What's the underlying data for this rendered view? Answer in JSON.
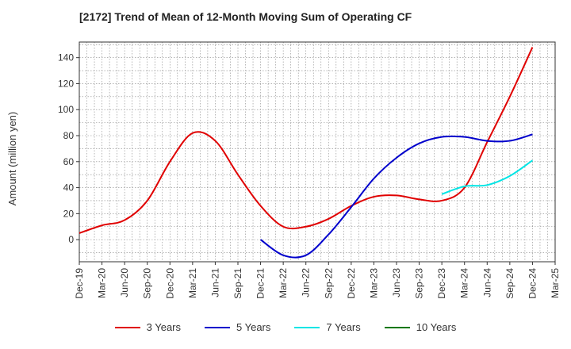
{
  "chart_data": {
    "type": "line",
    "title": "[2172]  Trend of Mean of 12-Month Moving Sum of Operating CF",
    "xlabel": "",
    "ylabel": "Amount (million yen)",
    "ylim": [
      -17,
      152
    ],
    "yticks": [
      0,
      20,
      40,
      60,
      80,
      100,
      120,
      140
    ],
    "categories": [
      "Dec-19",
      "Mar-20",
      "Jun-20",
      "Sep-20",
      "Dec-20",
      "Mar-21",
      "Jun-21",
      "Sep-21",
      "Dec-21",
      "Mar-22",
      "Jun-22",
      "Sep-22",
      "Dec-22",
      "Mar-23",
      "Jun-23",
      "Sep-23",
      "Dec-23",
      "Mar-24",
      "Jun-24",
      "Sep-24",
      "Dec-24",
      "Mar-25"
    ],
    "grid": true,
    "legend_position": "bottom",
    "series": [
      {
        "name": "3 Years",
        "color": "#e00000",
        "values": [
          5,
          11,
          15,
          30,
          60,
          82,
          76,
          50,
          26,
          10,
          10,
          16,
          26,
          33,
          34,
          31,
          30,
          40,
          75,
          110,
          148,
          null
        ]
      },
      {
        "name": "5 Years",
        "color": "#0000cc",
        "values": [
          null,
          null,
          null,
          null,
          null,
          null,
          null,
          null,
          0,
          -12,
          -12,
          4,
          25,
          47,
          63,
          74,
          79,
          79,
          76,
          76,
          81,
          null
        ]
      },
      {
        "name": "7 Years",
        "color": "#00e5e5",
        "values": [
          null,
          null,
          null,
          null,
          null,
          null,
          null,
          null,
          null,
          null,
          null,
          null,
          null,
          null,
          null,
          null,
          35,
          41,
          42,
          49,
          61,
          null
        ]
      },
      {
        "name": "10 Years",
        "color": "#007700",
        "values": [
          null,
          null,
          null,
          null,
          null,
          null,
          null,
          null,
          null,
          null,
          null,
          null,
          null,
          null,
          null,
          null,
          null,
          null,
          null,
          null,
          null,
          null
        ]
      }
    ]
  }
}
